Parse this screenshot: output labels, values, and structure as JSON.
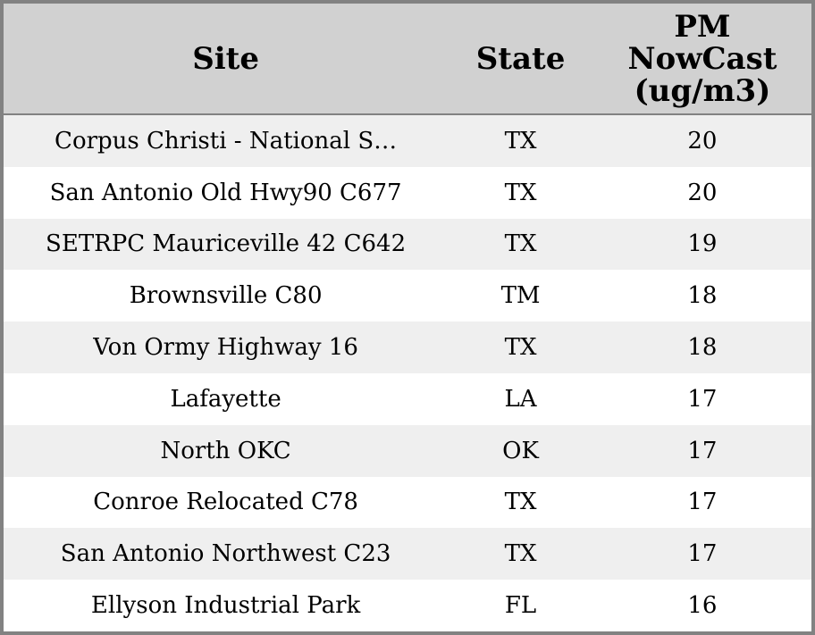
{
  "chart_data": {
    "type": "table",
    "title": "",
    "columns": [
      "Site",
      "State",
      "PM NowCast (ug/m3)"
    ],
    "rows": [
      [
        "Corpus Christi - National S…",
        "TX",
        20
      ],
      [
        "San Antonio Old Hwy90 C677",
        "TX",
        20
      ],
      [
        "SETRPC Mauriceville 42 C642",
        "TX",
        19
      ],
      [
        "Brownsville C80",
        "TM",
        18
      ],
      [
        "Von Ormy Highway 16",
        "TX",
        18
      ],
      [
        "Lafayette",
        "LA",
        17
      ],
      [
        "North OKC",
        "OK",
        17
      ],
      [
        "Conroe Relocated C78",
        "TX",
        17
      ],
      [
        "San Antonio Northwest C23",
        "TX",
        17
      ],
      [
        "Ellyson Industrial Park",
        "FL",
        16
      ]
    ],
    "layout": {
      "grid": false,
      "row_striping": true,
      "alignment": "center"
    }
  },
  "colors": {
    "outer_border": "#828282",
    "header_background": "#d1d1d1",
    "header_separator": "#828282",
    "row_odd_background": "#efefef",
    "row_even_background": "#ffffff",
    "text": "#000000"
  }
}
